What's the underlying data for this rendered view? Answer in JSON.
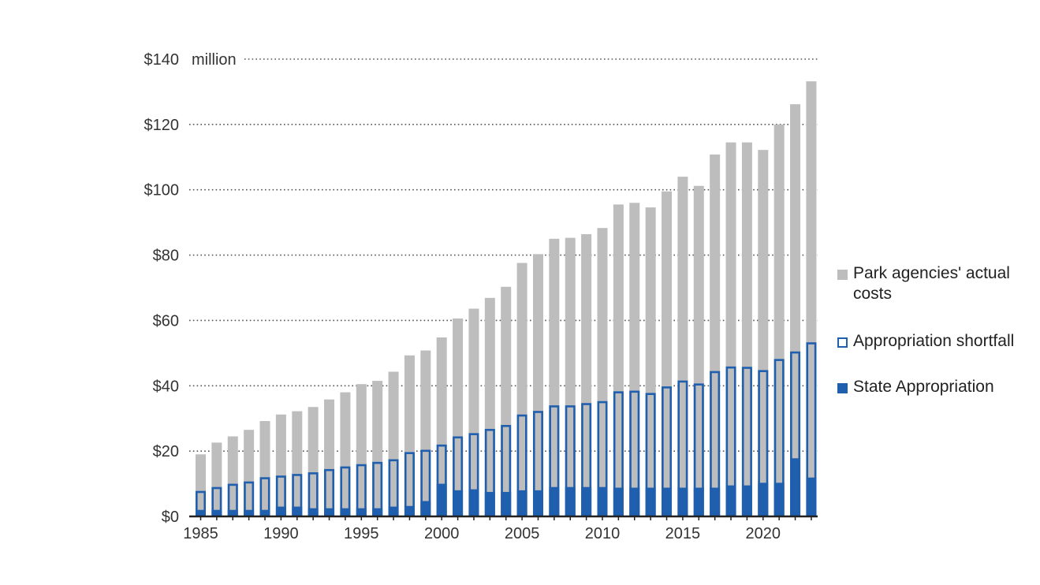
{
  "chart_data": {
    "type": "bar",
    "unit_label": "million",
    "x": [
      1985,
      1986,
      1987,
      1988,
      1989,
      1990,
      1991,
      1992,
      1993,
      1994,
      1995,
      1996,
      1997,
      1998,
      1999,
      2000,
      2001,
      2002,
      2003,
      2004,
      2005,
      2006,
      2007,
      2008,
      2009,
      2010,
      2011,
      2012,
      2013,
      2014,
      2015,
      2016,
      2017,
      2018,
      2019,
      2020,
      2021,
      2022,
      2023
    ],
    "x_tick_labels": [
      "1985",
      "1990",
      "1995",
      "2000",
      "2005",
      "2010",
      "2015",
      "2020"
    ],
    "y_tick_labels": [
      "$0",
      "$20",
      "$40",
      "$60",
      "$80",
      "$100",
      "$120",
      "$140"
    ],
    "ylim": [
      0,
      140
    ],
    "yticks": [
      0,
      20,
      40,
      60,
      80,
      100,
      120,
      140
    ],
    "grid": "dotted horizontal",
    "legend_position": "right",
    "series": [
      {
        "name": "Park agencies' actual costs",
        "color": "#bdbdbd",
        "values": [
          19,
          22.6,
          24.5,
          26.5,
          29.2,
          31.2,
          32.2,
          33.5,
          35.8,
          38,
          40.5,
          41.5,
          44.3,
          49.3,
          50.8,
          54.8,
          60.6,
          63.6,
          66.9,
          70.3,
          77.6,
          80.3,
          85,
          85.3,
          86.4,
          88.3,
          95.5,
          96,
          94.6,
          99.5,
          104,
          101.2,
          110.8,
          114.5,
          114.5,
          112.2,
          120,
          126.2,
          133.2
        ]
      },
      {
        "name": "Appropriation shortfall",
        "color": "#1f5fae",
        "style": "outline",
        "values": [
          7.8,
          9,
          10,
          10.7,
          12,
          12.5,
          13,
          13.5,
          14.5,
          15.3,
          16,
          16.7,
          17.5,
          19.7,
          20.4,
          22,
          24.5,
          25.5,
          26.8,
          28,
          31.2,
          32.3,
          34,
          34,
          34.7,
          35.3,
          38.3,
          38.5,
          37.8,
          39.8,
          41.6,
          40.7,
          44.5,
          45.9,
          45.8,
          44.8,
          48.2,
          50.5,
          53.3
        ]
      },
      {
        "name": "State Appropriation",
        "color": "#1f5fae",
        "values": [
          2,
          2,
          2,
          2,
          2,
          3,
          3,
          2.5,
          2.5,
          2.5,
          2.5,
          2.5,
          3,
          3.2,
          4.7,
          10,
          8,
          8.3,
          7.5,
          7.5,
          8,
          8,
          9,
          9,
          9,
          9,
          8.8,
          8.8,
          8.8,
          8.8,
          8.8,
          8.8,
          8.8,
          9.5,
          9.5,
          10.3,
          10.3,
          17.8,
          11.9
        ]
      }
    ]
  }
}
